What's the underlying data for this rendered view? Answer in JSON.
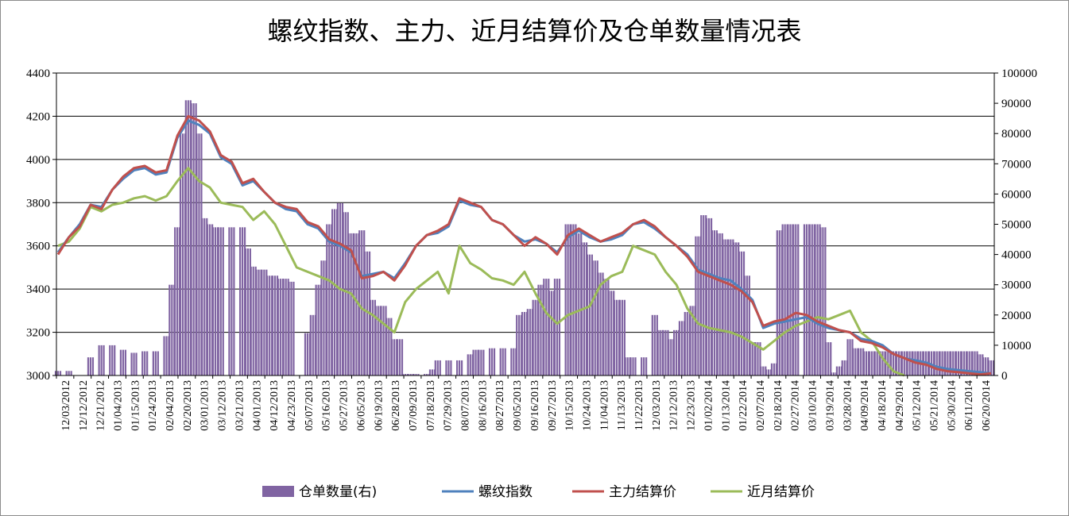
{
  "chart_data": {
    "type": "bar+line",
    "title": "螺纹指数、主力、近月结算价及仓单数量情况表",
    "left_axis": {
      "min": 3000,
      "max": 4400,
      "ticks": [
        3000,
        3200,
        3400,
        3600,
        3800,
        4000,
        4200,
        4400
      ]
    },
    "right_axis": {
      "min": 0,
      "max": 100000,
      "ticks": [
        0,
        10000,
        20000,
        30000,
        40000,
        50000,
        60000,
        70000,
        80000,
        90000,
        100000
      ]
    },
    "x_tick_labels": [
      "12/03/2012",
      "12/12/2012",
      "12/21/2012",
      "01/04/2013",
      "01/15/2013",
      "01/24/2013",
      "02/04/2013",
      "02/20/2013",
      "03/01/2013",
      "03/12/2013",
      "03/21/2013",
      "04/01/2013",
      "04/12/2013",
      "04/23/2013",
      "05/07/2013",
      "05/16/2013",
      "05/27/2013",
      "06/05/2013",
      "06/19/2013",
      "06/28/2013",
      "07/09/2013",
      "07/18/2013",
      "07/29/2013",
      "08/07/2013",
      "08/16/2013",
      "08/27/2013",
      "09/05/2013",
      "09/16/2013",
      "09/27/2013",
      "10/15/2013",
      "10/24/2013",
      "11/04/2013",
      "11/13/2013",
      "11/22/2013",
      "12/03/2013",
      "12/12/2013",
      "12/23/2013",
      "01/02/2014",
      "01/13/2014",
      "01/22/2014",
      "02/07/2014",
      "02/18/2014",
      "02/27/2014",
      "03/10/2014",
      "03/19/2014",
      "03/28/2014",
      "04/09/2014",
      "04/18/2014",
      "04/29/2014",
      "05/12/2014",
      "05/21/2014",
      "05/30/2014",
      "06/11/2014",
      "06/20/2014"
    ],
    "legend": [
      {
        "name": "仓单数量(右)",
        "kind": "bar",
        "color": "#8064a2"
      },
      {
        "name": "螺纹指数",
        "kind": "line",
        "color": "#4f81bd"
      },
      {
        "name": "主力结算价",
        "kind": "line",
        "color": "#c0504d"
      },
      {
        "name": "近月结算价",
        "kind": "line",
        "color": "#9bbb59"
      }
    ],
    "warehouse_receipts_right": [
      [
        0,
        1500
      ],
      [
        1,
        1500
      ],
      [
        2,
        0
      ],
      [
        3,
        6000
      ],
      [
        4,
        10000
      ],
      [
        5,
        10000
      ],
      [
        6,
        8500
      ],
      [
        7,
        7500
      ],
      [
        8,
        8000
      ],
      [
        9,
        8000
      ],
      [
        10,
        13000
      ],
      [
        10.5,
        30000
      ],
      [
        11,
        49000
      ],
      [
        11.5,
        80000
      ],
      [
        12,
        91000
      ],
      [
        12.5,
        90000
      ],
      [
        13,
        80000
      ],
      [
        13.5,
        52000
      ],
      [
        14,
        50000
      ],
      [
        14.5,
        49000
      ],
      [
        15,
        49000
      ],
      [
        16,
        49000
      ],
      [
        17,
        49000
      ],
      [
        17.5,
        42000
      ],
      [
        18,
        36000
      ],
      [
        18.5,
        35000
      ],
      [
        19,
        35000
      ],
      [
        19.5,
        33000
      ],
      [
        20,
        33000
      ],
      [
        20.5,
        32000
      ],
      [
        21,
        32000
      ],
      [
        21.5,
        31000
      ],
      [
        22,
        0
      ],
      [
        22.5,
        0
      ],
      [
        23,
        14000
      ],
      [
        23.5,
        20000
      ],
      [
        24,
        30000
      ],
      [
        24.5,
        38000
      ],
      [
        25,
        50000
      ],
      [
        25.5,
        55000
      ],
      [
        26,
        57000
      ],
      [
        26.5,
        54000
      ],
      [
        27,
        47000
      ],
      [
        27.5,
        47000
      ],
      [
        28,
        48000
      ],
      [
        28.5,
        41000
      ],
      [
        29,
        25000
      ],
      [
        29.5,
        23000
      ],
      [
        30,
        23000
      ],
      [
        30.5,
        19000
      ],
      [
        31,
        12000
      ],
      [
        31.5,
        12000
      ],
      [
        32,
        500
      ],
      [
        32.5,
        500
      ],
      [
        33,
        500
      ],
      [
        34,
        500
      ],
      [
        34.5,
        2000
      ],
      [
        35,
        5000
      ],
      [
        36,
        5000
      ],
      [
        37,
        5000
      ],
      [
        38,
        7000
      ],
      [
        38.5,
        8500
      ],
      [
        39,
        8500
      ],
      [
        40,
        9000
      ],
      [
        41,
        9000
      ],
      [
        42,
        9000
      ],
      [
        42.5,
        20000
      ],
      [
        43,
        21000
      ],
      [
        43.5,
        22000
      ],
      [
        44,
        25000
      ],
      [
        44.5,
        30000
      ],
      [
        45,
        32000
      ],
      [
        45.5,
        28000
      ],
      [
        46,
        32000
      ],
      [
        47,
        50000
      ],
      [
        47.5,
        50000
      ],
      [
        48,
        47000
      ],
      [
        48.5,
        44000
      ],
      [
        49,
        40000
      ],
      [
        49.5,
        38000
      ],
      [
        50,
        34000
      ],
      [
        50.5,
        32000
      ],
      [
        51,
        28000
      ],
      [
        51.5,
        25000
      ],
      [
        52,
        25000
      ],
      [
        52.5,
        6000
      ],
      [
        53,
        6000
      ],
      [
        54,
        6000
      ],
      [
        55,
        20000
      ],
      [
        55.5,
        15000
      ],
      [
        56,
        15000
      ],
      [
        56.5,
        12000
      ],
      [
        57,
        15000
      ],
      [
        57.5,
        18000
      ],
      [
        58,
        21000
      ],
      [
        58.5,
        23000
      ],
      [
        59,
        46000
      ],
      [
        59.5,
        53000
      ],
      [
        60,
        52000
      ],
      [
        60.5,
        48000
      ],
      [
        61,
        47000
      ],
      [
        61.5,
        45000
      ],
      [
        62,
        45000
      ],
      [
        62.5,
        44000
      ],
      [
        63,
        41000
      ],
      [
        63.5,
        33000
      ],
      [
        64,
        11000
      ],
      [
        64.5,
        11000
      ],
      [
        65,
        3000
      ],
      [
        65.5,
        2000
      ],
      [
        66,
        4000
      ],
      [
        66.5,
        48000
      ],
      [
        67,
        50000
      ],
      [
        67.5,
        50000
      ],
      [
        68,
        50000
      ],
      [
        69,
        50000
      ],
      [
        69.5,
        50000
      ],
      [
        70,
        50000
      ],
      [
        70.5,
        49000
      ],
      [
        71,
        11000
      ],
      [
        71.5,
        1000
      ],
      [
        72,
        3000
      ],
      [
        72.5,
        5000
      ],
      [
        73,
        12000
      ],
      [
        73.5,
        9000
      ],
      [
        74,
        9000
      ],
      [
        74.5,
        8000
      ],
      [
        75,
        8000
      ],
      [
        75.5,
        8000
      ],
      [
        76,
        8000
      ],
      [
        76.5,
        8000
      ],
      [
        77,
        8000
      ],
      [
        77.5,
        8000
      ],
      [
        78,
        8000
      ],
      [
        78.5,
        8000
      ],
      [
        79,
        8000
      ],
      [
        79.5,
        8000
      ],
      [
        80,
        8000
      ],
      [
        80.5,
        8000
      ],
      [
        81,
        8000
      ],
      [
        81.5,
        8000
      ],
      [
        82,
        8000
      ],
      [
        82.5,
        8000
      ],
      [
        83,
        8000
      ],
      [
        83.5,
        8000
      ],
      [
        84,
        8000
      ],
      [
        84.5,
        8000
      ],
      [
        85,
        7000
      ],
      [
        85.5,
        6000
      ],
      [
        86,
        5000
      ]
    ],
    "rebar_index_left": [
      [
        0,
        3570
      ],
      [
        1,
        3640
      ],
      [
        2,
        3700
      ],
      [
        3,
        3790
      ],
      [
        4,
        3780
      ],
      [
        5,
        3860
      ],
      [
        6,
        3910
      ],
      [
        7,
        3950
      ],
      [
        8,
        3960
      ],
      [
        9,
        3930
      ],
      [
        10,
        3940
      ],
      [
        11,
        4100
      ],
      [
        12,
        4180
      ],
      [
        13,
        4160
      ],
      [
        14,
        4120
      ],
      [
        15,
        4010
      ],
      [
        16,
        3980
      ],
      [
        17,
        3880
      ],
      [
        18,
        3900
      ],
      [
        19,
        3850
      ],
      [
        20,
        3800
      ],
      [
        21,
        3770
      ],
      [
        22,
        3760
      ],
      [
        23,
        3700
      ],
      [
        24,
        3680
      ],
      [
        25,
        3620
      ],
      [
        26,
        3600
      ],
      [
        27,
        3570
      ],
      [
        28,
        3460
      ],
      [
        29,
        3470
      ],
      [
        30,
        3480
      ],
      [
        31,
        3450
      ],
      [
        32,
        3520
      ],
      [
        33,
        3600
      ],
      [
        34,
        3650
      ],
      [
        35,
        3660
      ],
      [
        36,
        3690
      ],
      [
        37,
        3810
      ],
      [
        38,
        3790
      ],
      [
        39,
        3780
      ],
      [
        40,
        3720
      ],
      [
        41,
        3700
      ],
      [
        42,
        3650
      ],
      [
        43,
        3620
      ],
      [
        44,
        3630
      ],
      [
        45,
        3610
      ],
      [
        46,
        3570
      ],
      [
        47,
        3640
      ],
      [
        48,
        3670
      ],
      [
        49,
        3640
      ],
      [
        50,
        3620
      ],
      [
        51,
        3630
      ],
      [
        52,
        3650
      ],
      [
        53,
        3700
      ],
      [
        54,
        3710
      ],
      [
        55,
        3680
      ],
      [
        56,
        3640
      ],
      [
        57,
        3600
      ],
      [
        58,
        3560
      ],
      [
        59,
        3490
      ],
      [
        60,
        3470
      ],
      [
        61,
        3450
      ],
      [
        62,
        3440
      ],
      [
        63,
        3400
      ],
      [
        64,
        3350
      ],
      [
        65,
        3220
      ],
      [
        66,
        3240
      ],
      [
        67,
        3250
      ],
      [
        68,
        3260
      ],
      [
        69,
        3270
      ],
      [
        70,
        3240
      ],
      [
        71,
        3220
      ],
      [
        72,
        3210
      ],
      [
        73,
        3200
      ],
      [
        74,
        3170
      ],
      [
        75,
        3160
      ],
      [
        76,
        3140
      ],
      [
        77,
        3100
      ],
      [
        78,
        3080
      ],
      [
        79,
        3070
      ],
      [
        80,
        3060
      ],
      [
        81,
        3040
      ],
      [
        82,
        3030
      ],
      [
        83,
        3025
      ],
      [
        84,
        3020
      ],
      [
        85,
        3015
      ],
      [
        86,
        3010
      ]
    ],
    "main_settlement_left": [
      [
        0,
        3560
      ],
      [
        1,
        3640
      ],
      [
        2,
        3690
      ],
      [
        3,
        3790
      ],
      [
        4,
        3770
      ],
      [
        5,
        3860
      ],
      [
        6,
        3920
      ],
      [
        7,
        3960
      ],
      [
        8,
        3970
      ],
      [
        9,
        3940
      ],
      [
        10,
        3950
      ],
      [
        11,
        4110
      ],
      [
        12,
        4200
      ],
      [
        13,
        4180
      ],
      [
        14,
        4130
      ],
      [
        15,
        4020
      ],
      [
        16,
        3990
      ],
      [
        17,
        3890
      ],
      [
        18,
        3910
      ],
      [
        19,
        3850
      ],
      [
        20,
        3800
      ],
      [
        21,
        3780
      ],
      [
        22,
        3770
      ],
      [
        23,
        3710
      ],
      [
        24,
        3690
      ],
      [
        25,
        3630
      ],
      [
        26,
        3610
      ],
      [
        27,
        3580
      ],
      [
        28,
        3450
      ],
      [
        29,
        3460
      ],
      [
        30,
        3480
      ],
      [
        31,
        3440
      ],
      [
        32,
        3510
      ],
      [
        33,
        3600
      ],
      [
        34,
        3650
      ],
      [
        35,
        3670
      ],
      [
        36,
        3700
      ],
      [
        37,
        3820
      ],
      [
        38,
        3800
      ],
      [
        39,
        3780
      ],
      [
        40,
        3720
      ],
      [
        41,
        3700
      ],
      [
        42,
        3650
      ],
      [
        43,
        3600
      ],
      [
        44,
        3640
      ],
      [
        45,
        3610
      ],
      [
        46,
        3560
      ],
      [
        47,
        3650
      ],
      [
        48,
        3680
      ],
      [
        49,
        3650
      ],
      [
        50,
        3620
      ],
      [
        51,
        3640
      ],
      [
        52,
        3660
      ],
      [
        53,
        3700
      ],
      [
        54,
        3720
      ],
      [
        55,
        3690
      ],
      [
        56,
        3640
      ],
      [
        57,
        3600
      ],
      [
        58,
        3550
      ],
      [
        59,
        3480
      ],
      [
        60,
        3460
      ],
      [
        61,
        3440
      ],
      [
        62,
        3420
      ],
      [
        63,
        3390
      ],
      [
        64,
        3340
      ],
      [
        65,
        3230
      ],
      [
        66,
        3250
      ],
      [
        67,
        3260
      ],
      [
        68,
        3290
      ],
      [
        69,
        3280
      ],
      [
        70,
        3250
      ],
      [
        71,
        3230
      ],
      [
        72,
        3210
      ],
      [
        73,
        3200
      ],
      [
        74,
        3160
      ],
      [
        75,
        3150
      ],
      [
        76,
        3130
      ],
      [
        77,
        3100
      ],
      [
        78,
        3080
      ],
      [
        79,
        3060
      ],
      [
        80,
        3050
      ],
      [
        81,
        3030
      ],
      [
        82,
        3020
      ],
      [
        83,
        3015
      ],
      [
        84,
        3010
      ],
      [
        85,
        3005
      ],
      [
        86,
        3010
      ]
    ],
    "near_month_settlement_left": [
      [
        0,
        3600
      ],
      [
        1,
        3620
      ],
      [
        2,
        3680
      ],
      [
        3,
        3780
      ],
      [
        4,
        3760
      ],
      [
        5,
        3790
      ],
      [
        6,
        3800
      ],
      [
        7,
        3820
      ],
      [
        8,
        3830
      ],
      [
        9,
        3810
      ],
      [
        10,
        3830
      ],
      [
        11,
        3900
      ],
      [
        12,
        3960
      ],
      [
        13,
        3900
      ],
      [
        14,
        3870
      ],
      [
        15,
        3800
      ],
      [
        16,
        3790
      ],
      [
        17,
        3780
      ],
      [
        18,
        3720
      ],
      [
        19,
        3760
      ],
      [
        20,
        3700
      ],
      [
        21,
        3600
      ],
      [
        22,
        3500
      ],
      [
        23,
        3480
      ],
      [
        24,
        3460
      ],
      [
        25,
        3440
      ],
      [
        26,
        3400
      ],
      [
        27,
        3380
      ],
      [
        28,
        3310
      ],
      [
        29,
        3280
      ],
      [
        30,
        3240
      ],
      [
        31,
        3200
      ],
      [
        32,
        3340
      ],
      [
        33,
        3400
      ],
      [
        34,
        3440
      ],
      [
        35,
        3480
      ],
      [
        36,
        3380
      ],
      [
        37,
        3600
      ],
      [
        38,
        3520
      ],
      [
        39,
        3490
      ],
      [
        40,
        3450
      ],
      [
        41,
        3440
      ],
      [
        42,
        3420
      ],
      [
        43,
        3480
      ],
      [
        44,
        3380
      ],
      [
        45,
        3290
      ],
      [
        46,
        3240
      ],
      [
        47,
        3280
      ],
      [
        48,
        3300
      ],
      [
        49,
        3320
      ],
      [
        50,
        3420
      ],
      [
        51,
        3460
      ],
      [
        52,
        3480
      ],
      [
        53,
        3600
      ],
      [
        54,
        3580
      ],
      [
        55,
        3560
      ],
      [
        56,
        3480
      ],
      [
        57,
        3420
      ],
      [
        58,
        3310
      ],
      [
        59,
        3240
      ],
      [
        60,
        3220
      ],
      [
        61,
        3210
      ],
      [
        62,
        3200
      ],
      [
        63,
        3180
      ],
      [
        64,
        3150
      ],
      [
        65,
        3120
      ],
      [
        66,
        3160
      ],
      [
        67,
        3200
      ],
      [
        68,
        3230
      ],
      [
        69,
        3250
      ],
      [
        70,
        3270
      ],
      [
        71,
        3260
      ],
      [
        72,
        3280
      ],
      [
        73,
        3300
      ],
      [
        74,
        3200
      ],
      [
        75,
        3160
      ],
      [
        76,
        3080
      ],
      [
        77,
        3020
      ],
      [
        78,
        3000
      ]
    ]
  }
}
